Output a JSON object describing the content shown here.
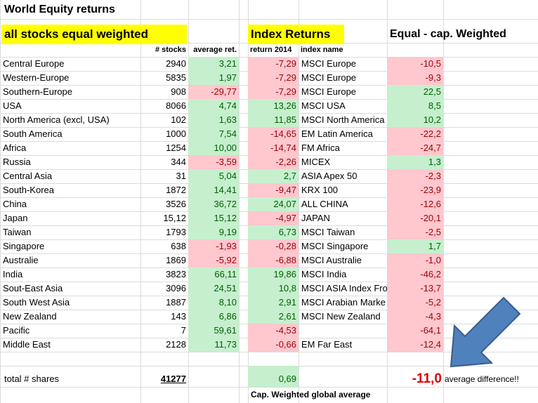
{
  "title": "World Equity returns",
  "section_equal": "all stocks equal weighted",
  "section_index": "Index Returns",
  "section_diff": "Equal - cap. Weighted",
  "col_headers": {
    "stocks": "# stocks",
    "avg_ret": "average ret.",
    "return_2014": "return 2014",
    "index_name": "index name"
  },
  "rows": [
    {
      "region": "Central Europe",
      "stocks": "2940",
      "avg": "3,21",
      "ret": "-7,29",
      "index": "MSCI Europe",
      "diff": "-10,5"
    },
    {
      "region": "Western-Europe",
      "stocks": "5835",
      "avg": "1,97",
      "ret": "-7,29",
      "index": "MSCI Europe",
      "diff": "-9,3"
    },
    {
      "region": "Southern-Europe",
      "stocks": "908",
      "avg": "-29,77",
      "ret": "-7,29",
      "index": "MSCI Europe",
      "diff": "22,5"
    },
    {
      "region": "USA",
      "stocks": "8066",
      "avg": "4,74",
      "ret": "13,26",
      "index": "MSCI USA",
      "diff": "8,5"
    },
    {
      "region": "North America (excl, USA)",
      "stocks": "102",
      "avg": "1,63",
      "ret": "11,85",
      "index": "MSCI North America",
      "diff": "10,2"
    },
    {
      "region": "South America",
      "stocks": "1000",
      "avg": "7,54",
      "ret": "-14,65",
      "index": "EM Latin America",
      "diff": "-22,2"
    },
    {
      "region": "Africa",
      "stocks": "1254",
      "avg": "10,00",
      "ret": "-14,74",
      "index": "FM Africa",
      "diff": "-24,7"
    },
    {
      "region": "Russia",
      "stocks": "344",
      "avg": "-3,59",
      "ret": "-2,26",
      "index": "MICEX",
      "diff": "1,3"
    },
    {
      "region": "Central Asia",
      "stocks": "31",
      "avg": "5,04",
      "ret": "2,7",
      "index": "ASIA Apex 50",
      "diff": "-2,3"
    },
    {
      "region": "South-Korea",
      "stocks": "1872",
      "avg": "14,41",
      "ret": "-9,47",
      "index": "KRX 100",
      "diff": "-23,9"
    },
    {
      "region": "China",
      "stocks": "3526",
      "avg": "36,72",
      "ret": "24,07",
      "index": "ALL CHINA",
      "diff": "-12,6"
    },
    {
      "region": "Japan",
      "stocks": "15,12",
      "avg": "15,12",
      "ret": "-4,97",
      "index": "JAPAN",
      "diff": "-20,1"
    },
    {
      "region": "Taiwan",
      "stocks": "1793",
      "avg": "9,19",
      "ret": "6,73",
      "index": "MSCI Taiwan",
      "diff": "-2,5"
    },
    {
      "region": "Singapore",
      "stocks": "638",
      "avg": "-1,93",
      "ret": "-0,28",
      "index": "MSCI Singapore",
      "diff": "1,7"
    },
    {
      "region": "Australie",
      "stocks": "1869",
      "avg": "-5,92",
      "ret": "-6,88",
      "index": "MSCI Australie",
      "diff": "-1,0"
    },
    {
      "region": "India",
      "stocks": "3823",
      "avg": "66,11",
      "ret": "19,86",
      "index": "MSCI India",
      "diff": "-46,2"
    },
    {
      "region": "Sout-East Asia",
      "stocks": "3096",
      "avg": "24,51",
      "ret": "10,8",
      "index": "MSCI ASIA Index Fro",
      "diff": "-13,7"
    },
    {
      "region": "South West Asia",
      "stocks": "1887",
      "avg": "8,10",
      "ret": "2,91",
      "index": "MSCI Arabian Marke",
      "diff": "-5,2"
    },
    {
      "region": "New Zealand",
      "stocks": "143",
      "avg": "6,86",
      "ret": "2,61",
      "index": "MSCI New Zealand",
      "diff": "-4,3"
    },
    {
      "region": "Pacific",
      "stocks": "7",
      "avg": "59,61",
      "ret": "-4,53",
      "index": "",
      "diff": "-64,1"
    },
    {
      "region": "Middle East",
      "stocks": "2128",
      "avg": "11,73",
      "ret": "-0,66",
      "index": "EM Far East",
      "diff": "-12,4"
    }
  ],
  "total_label": "total # shares",
  "total_value": "41277",
  "cap_weighted_value": "0,69",
  "cap_weighted_label": "Cap. Weighted global average",
  "avg_diff_value": "-11,0",
  "avg_diff_label": "average difference!!",
  "colors": {
    "green_fill": "#c6efce",
    "green_text": "#006100",
    "red_fill": "#ffc7ce",
    "red_text": "#9c0006",
    "yellow": "#ffff00",
    "arrow": "#4f81bd"
  }
}
